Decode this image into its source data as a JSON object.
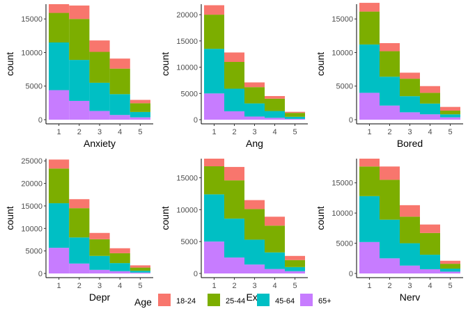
{
  "legend": {
    "title": "Age",
    "position": "bottom",
    "entries": [
      {
        "label": "18-24",
        "color": "#F8766D"
      },
      {
        "label": "25-44",
        "color": "#7CAE00"
      },
      {
        "label": "45-64",
        "color": "#00BFC4"
      },
      {
        "label": "65+",
        "color": "#C77CFF"
      }
    ]
  },
  "chart_data": [
    {
      "type": "bar",
      "stacked": true,
      "xlabel": "Anxiety",
      "ylabel": "count",
      "categories": [
        "1",
        "2",
        "3",
        "4",
        "5"
      ],
      "ylim": [
        0,
        17200
      ],
      "yticks": [
        0,
        5000,
        10000,
        15000
      ],
      "grid": false,
      "series": [
        {
          "name": "65+",
          "values": [
            4400,
            2800,
            1300,
            700,
            350
          ]
        },
        {
          "name": "45-64",
          "values": [
            7100,
            6100,
            4200,
            3100,
            800
          ]
        },
        {
          "name": "25-44",
          "values": [
            4400,
            6100,
            4600,
            3800,
            1300
          ]
        },
        {
          "name": "18-24",
          "values": [
            1300,
            2000,
            1700,
            1500,
            500
          ]
        }
      ]
    },
    {
      "type": "bar",
      "stacked": true,
      "xlabel": "Ang",
      "ylabel": "count",
      "categories": [
        "1",
        "2",
        "3",
        "4",
        "5"
      ],
      "ylim": [
        0,
        22000
      ],
      "yticks": [
        0,
        5000,
        10000,
        15000,
        20000
      ],
      "grid": false,
      "series": [
        {
          "name": "65+",
          "values": [
            5000,
            1600,
            600,
            350,
            150
          ]
        },
        {
          "name": "45-64",
          "values": [
            8500,
            4300,
            2500,
            1300,
            400
          ]
        },
        {
          "name": "25-44",
          "values": [
            6500,
            5100,
            3100,
            2350,
            750
          ]
        },
        {
          "name": "18-24",
          "values": [
            1800,
            1800,
            900,
            500,
            200
          ]
        }
      ]
    },
    {
      "type": "bar",
      "stacked": true,
      "xlabel": "Bored",
      "ylabel": "count",
      "categories": [
        "1",
        "2",
        "3",
        "4",
        "5"
      ],
      "ylim": [
        0,
        17200
      ],
      "yticks": [
        0,
        5000,
        10000,
        15000
      ],
      "grid": false,
      "series": [
        {
          "name": "65+",
          "values": [
            4000,
            2100,
            1100,
            800,
            350
          ]
        },
        {
          "name": "45-64",
          "values": [
            7200,
            4300,
            2400,
            1600,
            450
          ]
        },
        {
          "name": "25-44",
          "values": [
            4900,
            3800,
            2600,
            1600,
            550
          ]
        },
        {
          "name": "18-24",
          "values": [
            1300,
            1200,
            900,
            1000,
            550
          ]
        }
      ]
    },
    {
      "type": "bar",
      "stacked": true,
      "xlabel": "Depr",
      "ylabel": "count",
      "categories": [
        "1",
        "2",
        "3",
        "4",
        "5"
      ],
      "ylim": [
        0,
        25500
      ],
      "yticks": [
        0,
        5000,
        10000,
        15000,
        20000,
        25000
      ],
      "grid": false,
      "series": [
        {
          "name": "65+",
          "values": [
            5700,
            2200,
            800,
            500,
            200
          ]
        },
        {
          "name": "45-64",
          "values": [
            9900,
            5800,
            3100,
            1800,
            400
          ]
        },
        {
          "name": "25-44",
          "values": [
            7700,
            6500,
            3700,
            2200,
            700
          ]
        },
        {
          "name": "18-24",
          "values": [
            2000,
            2000,
            1400,
            1100,
            500
          ]
        }
      ]
    },
    {
      "type": "bar",
      "stacked": true,
      "xlabel": "Exh",
      "ylabel": "count",
      "categories": [
        "1",
        "2",
        "3",
        "4",
        "5"
      ],
      "ylim": [
        0,
        18000
      ],
      "yticks": [
        0,
        5000,
        10000,
        15000
      ],
      "grid": false,
      "series": [
        {
          "name": "65+",
          "values": [
            5000,
            2500,
            1400,
            700,
            350
          ]
        },
        {
          "name": "45-64",
          "values": [
            7400,
            6100,
            3900,
            2600,
            650
          ]
        },
        {
          "name": "25-44",
          "values": [
            4400,
            6000,
            4800,
            4200,
            1100
          ]
        },
        {
          "name": "18-24",
          "values": [
            1200,
            2100,
            1400,
            1400,
            650
          ]
        }
      ]
    },
    {
      "type": "bar",
      "stacked": true,
      "xlabel": "Nerv",
      "ylabel": "count",
      "categories": [
        "1",
        "2",
        "3",
        "4",
        "5"
      ],
      "ylim": [
        0,
        19000
      ],
      "yticks": [
        0,
        5000,
        10000,
        15000
      ],
      "grid": false,
      "series": [
        {
          "name": "65+",
          "values": [
            5200,
            2500,
            1300,
            700,
            300
          ]
        },
        {
          "name": "45-64",
          "values": [
            7600,
            6400,
            3700,
            2400,
            500
          ]
        },
        {
          "name": "25-44",
          "values": [
            4900,
            6600,
            4400,
            3600,
            800
          ]
        },
        {
          "name": "18-24",
          "values": [
            1300,
            2200,
            1900,
            1400,
            500
          ]
        }
      ]
    }
  ]
}
